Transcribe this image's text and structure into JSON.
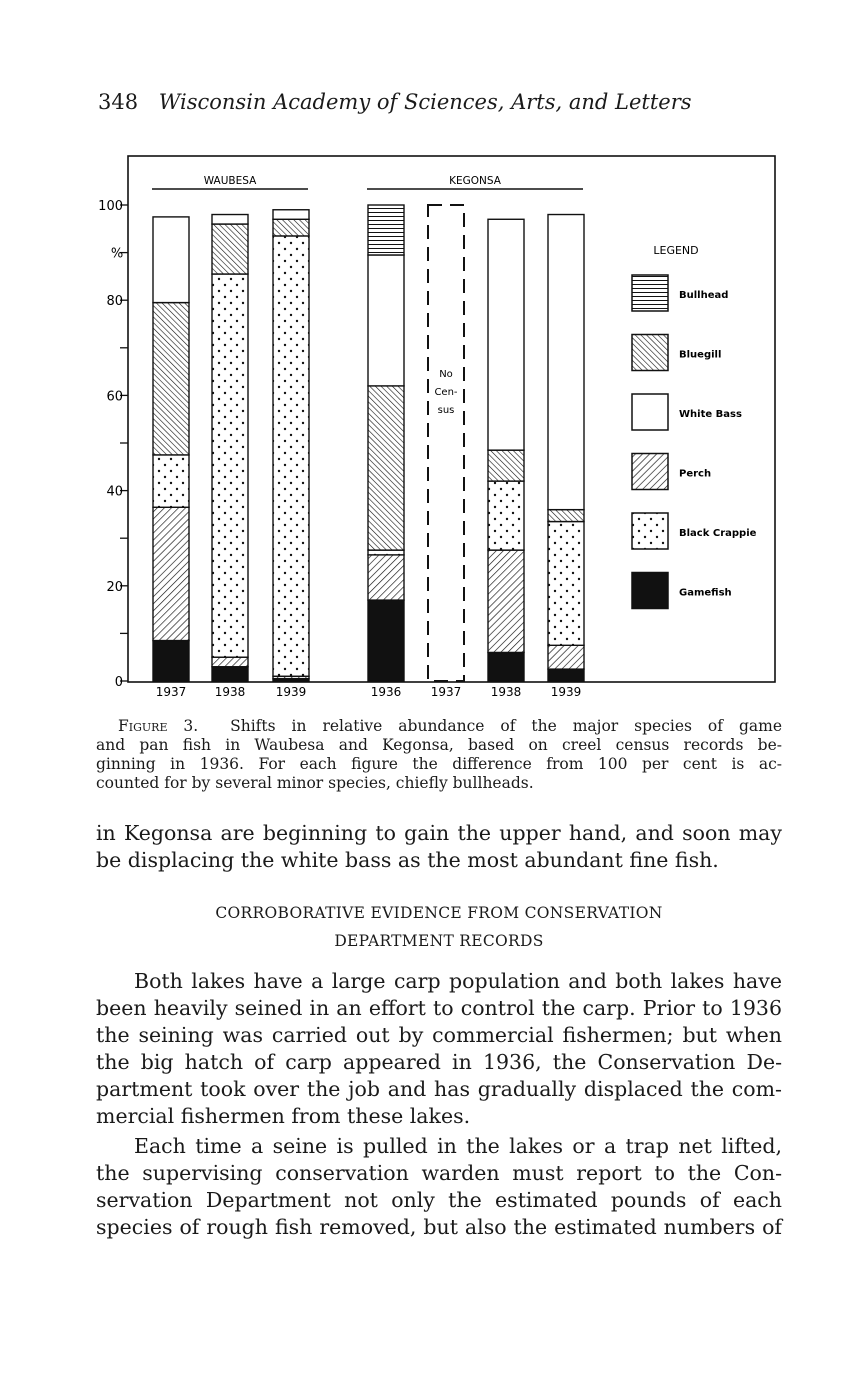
{
  "header": {
    "page_number": "348",
    "journal_title": "Wisconsin Academy of Sciences, Arts, and Letters"
  },
  "chart_data": {
    "type": "bar",
    "stacked": true,
    "ylabel": "%",
    "ylim": [
      0,
      100
    ],
    "yticks": [
      "0",
      "20",
      "40",
      "60",
      "80",
      "100"
    ],
    "groups": [
      {
        "name": "WAUBESA",
        "categories": [
          "1937",
          "1938",
          "1939"
        ]
      },
      {
        "name": "KEGONSA",
        "categories": [
          "1936",
          "1937",
          "1938",
          "1939"
        ]
      }
    ],
    "no_census_label": [
      "No",
      "Cen-",
      "sus"
    ],
    "legend_title": "LEGEND",
    "legend_placement": "right",
    "series": [
      {
        "name": "Gamefish",
        "pattern": "solid",
        "values": {
          "WAUBESA": [
            8.5,
            3,
            0.5
          ],
          "KEGONSA": [
            17,
            null,
            6,
            2.5
          ]
        }
      },
      {
        "name": "Perch",
        "pattern": "hatch-forward",
        "values": {
          "WAUBESA": [
            28,
            2,
            0.5
          ],
          "KEGONSA": [
            9.5,
            null,
            21.5,
            5
          ]
        }
      },
      {
        "name": "Black Crappie",
        "pattern": "dots",
        "values": {
          "WAUBESA": [
            11,
            80.5,
            92.5
          ],
          "KEGONSA": [
            1,
            null,
            14.5,
            26
          ]
        }
      },
      {
        "name": "Bluegill",
        "pattern": "hatch-back",
        "values": {
          "WAUBESA": [
            32,
            10.5,
            3.5
          ],
          "KEGONSA": [
            34.5,
            null,
            6.5,
            2.5
          ]
        }
      },
      {
        "name": "White Bass",
        "pattern": "blank",
        "values": {
          "WAUBESA": [
            18,
            2,
            2
          ],
          "KEGONSA": [
            27.5,
            null,
            48.5,
            62
          ]
        }
      },
      {
        "name": "Bullhead",
        "pattern": "horizontal-lines",
        "values": {
          "WAUBESA": [
            0,
            0,
            0
          ],
          "KEGONSA": [
            10.5,
            null,
            0,
            0
          ]
        }
      }
    ],
    "legend_order": [
      "Bullhead",
      "Bluegill",
      "White Bass",
      "Perch",
      "Black Crappie",
      "Gamefish"
    ]
  },
  "caption": {
    "label": "Figure 3.",
    "lines": [
      "Shifts in relative abundance of the major species of game",
      "and pan fish in Waubesa and Kegonsa, based on creel census records be-",
      "ginning in 1936. For each figure the difference from 100 per cent is ac-",
      "counted for by several minor species, chiefly bullheads."
    ]
  },
  "body": {
    "para1": [
      "in Kegonsa are beginning to gain the upper hand, and soon may",
      "be displacing the white bass as the most abundant fine fish."
    ],
    "heading": [
      "CORROBORATIVE EVIDENCE FROM CONSERVATION",
      "DEPARTMENT RECORDS"
    ],
    "para2": [
      "Both lakes have a large carp population and both lakes have",
      "been heavily seined in an effort to control the carp. Prior to 1936",
      "the seining was carried out by commercial fishermen; but when",
      "the big hatch of carp appeared in 1936, the Conservation De-",
      "partment took over the job and has gradually displaced the com-",
      "mercial fishermen from these lakes."
    ],
    "para3": [
      "Each time a seine is pulled in the lakes or a trap net lifted,",
      "the supervising conservation warden must report to the Con-",
      "servation Department not only the estimated pounds of each",
      "species of rough fish removed, but also the estimated numbers of"
    ]
  }
}
